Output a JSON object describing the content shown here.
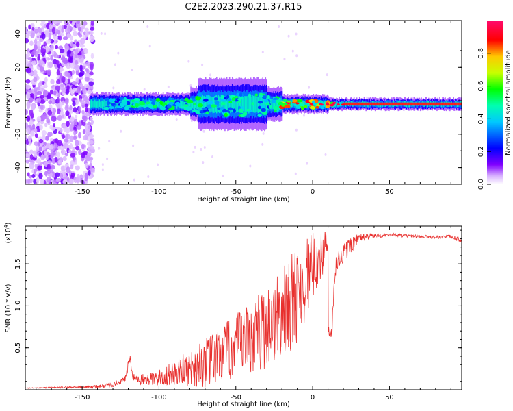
{
  "figure_title": "C2E2.2023.290.21.37.R15",
  "colors": {
    "snr_line": "#e8302e",
    "axis": "#000000",
    "spectrogram_ridge": "#ff1a1a"
  },
  "chart_data": [
    {
      "type": "heatmap",
      "title": "C2E2.2023.290.21.37.R15",
      "xlabel": "Height of straight line (km)",
      "ylabel": "Frequency (Hz)",
      "xlim": [
        -187,
        97
      ],
      "ylim": [
        -50,
        48
      ],
      "xticks": [
        -150,
        -100,
        -50,
        0,
        50
      ],
      "xtick_labels": [
        "-150",
        "-100",
        "-50",
        "0",
        "50"
      ],
      "yticks": [
        -40,
        -20,
        0,
        20,
        40
      ],
      "ytick_labels": [
        "-40",
        "-20",
        "0",
        "20",
        "40"
      ],
      "colorbar": {
        "label": "Normalized spectral amplitude",
        "range": [
          0,
          1
        ],
        "ticks": [
          0.0,
          0.2,
          0.4,
          0.6,
          0.8
        ],
        "tick_labels": [
          "0.0",
          "0.2",
          "0.4",
          "0.6",
          "0.8"
        ],
        "colormap": [
          "#ffffff",
          "#d9b3ff",
          "#8000ff",
          "#0000ff",
          "#00c8ff",
          "#00ffb0",
          "#00ff00",
          "#c8ff00",
          "#ffc800",
          "#ff0000",
          "#ff0a6e"
        ]
      },
      "regions": [
        {
          "name": "noise",
          "x_range": [
            -187,
            -143
          ],
          "freq_range": [
            -50,
            48
          ],
          "amplitude_range": [
            0.0,
            0.12
          ]
        },
        {
          "name": "signal-band",
          "x_range": [
            -145,
            97
          ],
          "freq_center": -2,
          "amplitude_range": [
            0.05,
            1.0
          ]
        }
      ]
    },
    {
      "type": "line",
      "title": "",
      "xlabel": "Height of straight line (km)",
      "ylabel": "SNR (10 * v/v)",
      "exponent_label": "(x10",
      "exponent_power": "4",
      "exponent_close": ")",
      "xlim": [
        -187,
        97
      ],
      "ylim": [
        0,
        19500
      ],
      "xticks": [
        -150,
        -100,
        -50,
        0,
        50
      ],
      "xtick_labels": [
        "-150",
        "-100",
        "-50",
        "0",
        "50"
      ],
      "yticks": [
        5000,
        10000,
        15000
      ],
      "ytick_labels": [
        "0.5",
        "1.0",
        "1.5"
      ],
      "series": [
        {
          "name": "SNR",
          "x": [
            -187,
            -160,
            -140,
            -130,
            -122,
            -119,
            -117,
            -110,
            -100,
            -90,
            -80,
            -70,
            -60,
            -50,
            -40,
            -30,
            -20,
            -12,
            -5,
            0,
            5,
            10,
            12,
            15,
            20,
            25,
            30,
            40,
            50,
            60,
            70,
            80,
            90,
            97
          ],
          "values": [
            200,
            300,
            400,
            700,
            1300,
            4000,
            1500,
            1300,
            1600,
            2300,
            3000,
            3800,
            4800,
            5800,
            7000,
            8500,
            10000,
            12000,
            14000,
            15500,
            16500,
            17500,
            6000,
            15000,
            16500,
            17500,
            18200,
            18400,
            18500,
            18400,
            18300,
            18200,
            18300,
            17800
          ],
          "noise_envelope": [
            50,
            100,
            200,
            300,
            400,
            600,
            500,
            700,
            1000,
            1500,
            2200,
            3000,
            3500,
            4000,
            4500,
            5000,
            5500,
            6000,
            5000,
            4000,
            3000,
            2000,
            1000,
            1500,
            1200,
            1000,
            500,
            300,
            200,
            200,
            200,
            200,
            200,
            300
          ]
        }
      ]
    }
  ]
}
